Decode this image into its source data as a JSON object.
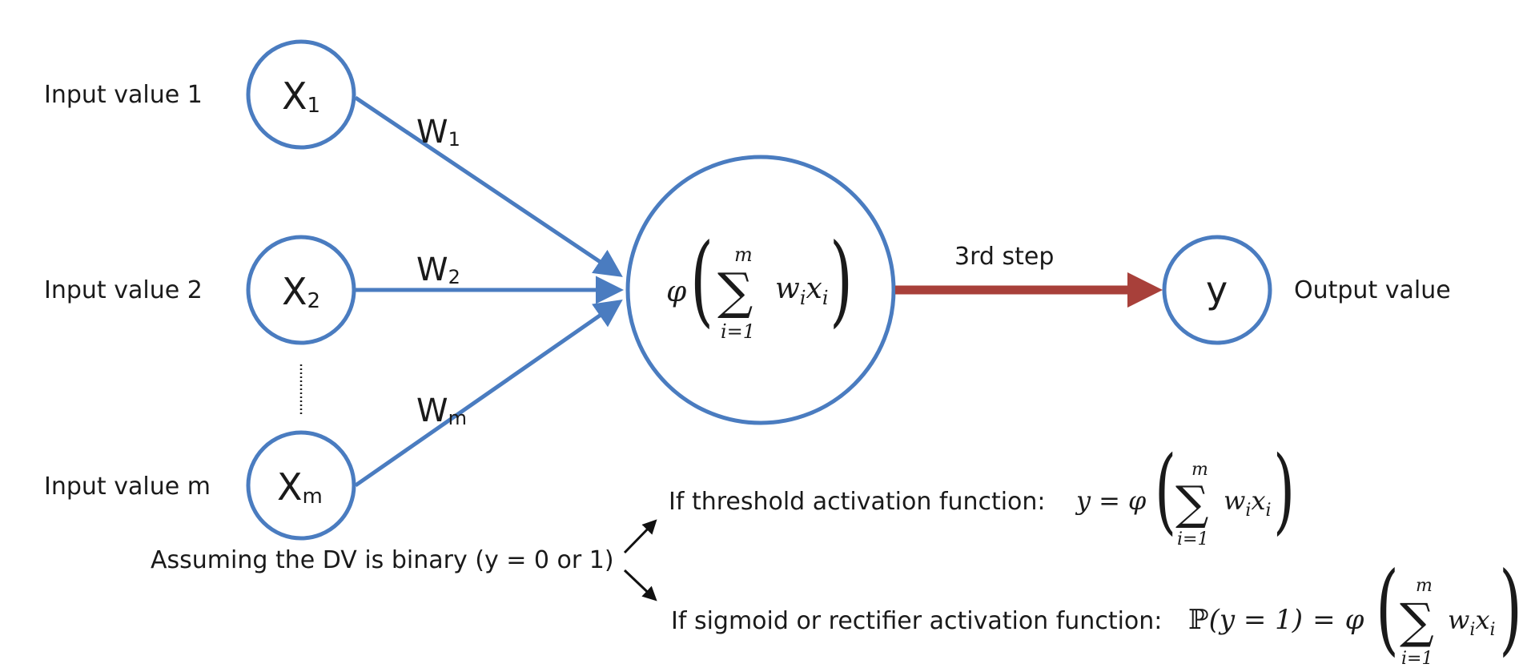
{
  "inputs": [
    {
      "label": "Input value 1",
      "node": "X",
      "sub": "1"
    },
    {
      "label": "Input value 2",
      "node": "X",
      "sub": "2"
    },
    {
      "label": "Input value m",
      "node": "X",
      "sub": "m"
    }
  ],
  "weights": [
    {
      "main": "W",
      "sub": "1"
    },
    {
      "main": "W",
      "sub": "2"
    },
    {
      "main": "W",
      "sub": "m"
    }
  ],
  "neuron": {
    "phi": "φ",
    "sum_symbol": "∑",
    "upper": "m",
    "lower": "i=1",
    "term_w": "w",
    "term_w_sub": "i",
    "term_x": "x",
    "term_x_sub": "i"
  },
  "step_label": "3rd step",
  "output": {
    "node": "y",
    "label": "Output value"
  },
  "assumption": "Assuming the DV is binary (y = 0 or 1)",
  "threshold": {
    "text": "If threshold activation function:",
    "lhs": "y",
    "eq": "="
  },
  "sigmoid": {
    "text": "If sigmoid or rectifier activation function:",
    "prob": "ℙ",
    "arg": "(y = 1)",
    "eq": "="
  },
  "colors": {
    "node_stroke": "#4a7cc0",
    "output_arrow": "#a8403a",
    "text": "#1a1a1a"
  }
}
